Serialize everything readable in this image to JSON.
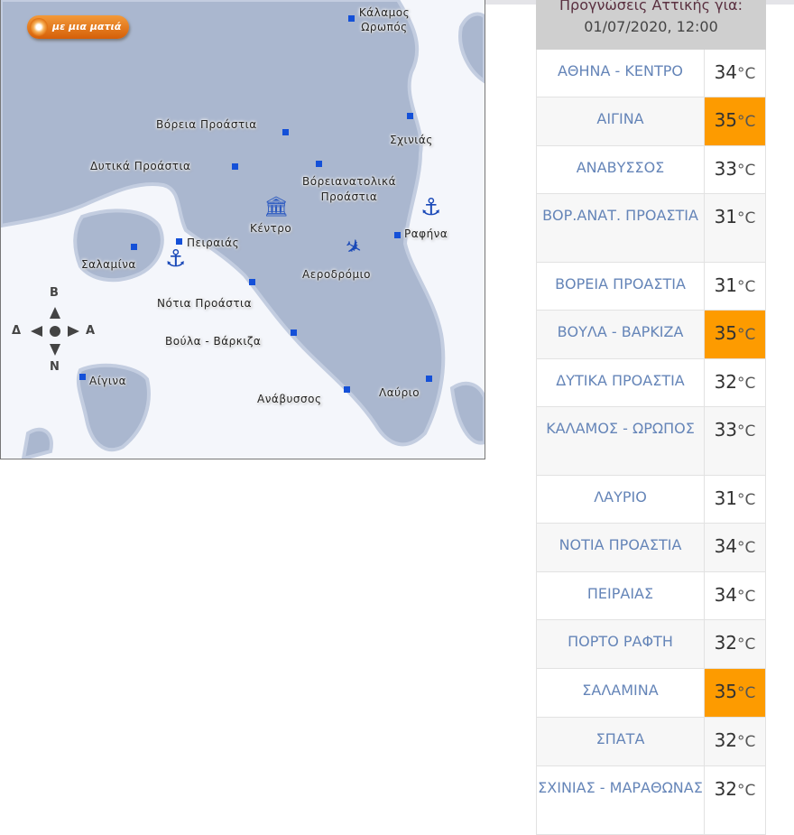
{
  "map": {
    "button_label": "με μια ματιά",
    "labels": [
      "Κάλαμος",
      "Ωρωπός",
      "Βόρεια Προάστια",
      "Σχινιάς",
      "Δυτικά Προάστια",
      "Βόρειανατολικά",
      "Προάστια",
      "Κέντρο",
      "Ραφήνα",
      "Πειραιάς",
      "Σαλαμίνα",
      "Αεροδρόμιο",
      "Νότια Προάστια",
      "Βούλα - Βάρκιζα",
      "Αίγινα",
      "Ανάβυσσος",
      "Λαύριο"
    ],
    "compass": {
      "north": "Β",
      "south": "Ν",
      "west": "Δ",
      "east": "Α"
    }
  },
  "forecast": {
    "title_line1": "Προγνώσεις Αττικής για:",
    "title_line2": "01/07/2020, 12:00",
    "unit": "°C",
    "hot_color": "#fd9b00",
    "rows": [
      {
        "name": "ΑΘΗΝΑ - ΚΕΝΤΡΟ",
        "temp": "34",
        "hot": false
      },
      {
        "name": "ΑΙΓΙΝΑ",
        "temp": "35",
        "hot": true
      },
      {
        "name": "ΑΝΑΒΥΣΣΟΣ",
        "temp": "33",
        "hot": false
      },
      {
        "name": "ΒΟΡ.ΑΝΑΤ. ΠΡΟΑΣΤΙΑ",
        "temp": "31",
        "hot": false
      },
      {
        "name": "ΒΟΡΕΙΑ ΠΡΟΑΣΤΙΑ",
        "temp": "31",
        "hot": false
      },
      {
        "name": "ΒΟΥΛΑ - ΒΑΡΚΙΖΑ",
        "temp": "35",
        "hot": true
      },
      {
        "name": "ΔΥΤΙΚΑ ΠΡΟΑΣΤΙΑ",
        "temp": "32",
        "hot": false
      },
      {
        "name": "ΚΑΛΑΜΟΣ - ΩΡΩΠΟΣ",
        "temp": "33",
        "hot": false
      },
      {
        "name": "ΛΑΥΡΙΟ",
        "temp": "31",
        "hot": false
      },
      {
        "name": "ΝΟΤΙΑ ΠΡΟΑΣΤΙΑ",
        "temp": "34",
        "hot": false
      },
      {
        "name": "ΠΕΙΡΑΙΑΣ",
        "temp": "34",
        "hot": false
      },
      {
        "name": "ΠΟΡΤΟ ΡΑΦΤΗ",
        "temp": "32",
        "hot": false
      },
      {
        "name": "ΣΑΛΑΜΙΝΑ",
        "temp": "35",
        "hot": true
      },
      {
        "name": "ΣΠΑΤΑ",
        "temp": "32",
        "hot": false
      },
      {
        "name": "ΣΧΙΝΙΑΣ - ΜΑΡΑΘΩΝΑΣ",
        "temp": "32",
        "hot": false
      }
    ]
  }
}
